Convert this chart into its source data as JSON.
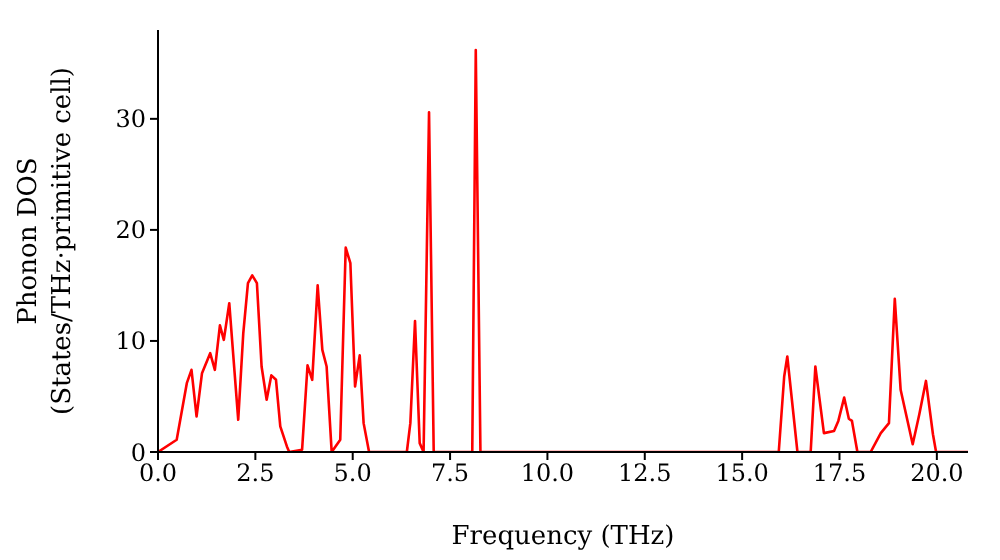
{
  "chart_data": {
    "type": "line",
    "xlabel": "Frequency (THz)",
    "ylabel": "Phonon DOS\n(States/THz·primitive cell)",
    "xlim": [
      0,
      20.8
    ],
    "ylim": [
      0,
      38
    ],
    "xticks": [
      {
        "value": 0,
        "label": "0.0"
      },
      2.5,
      {
        "value": 5,
        "label": "5.0"
      },
      7.5,
      {
        "value": 10,
        "label": "10.0"
      },
      12.5,
      {
        "value": 15,
        "label": "15.0"
      },
      17.5,
      {
        "value": 20,
        "label": "20.0"
      }
    ],
    "yticks": [
      0,
      10,
      20,
      30
    ],
    "grid": false,
    "legend": false,
    "marker": "none",
    "line_style": "solid",
    "series": [
      {
        "color": "#ff0000",
        "x": [
          0,
          0.48,
          0.74,
          0.86,
          0.99,
          1.13,
          1.34,
          1.46,
          1.59,
          1.69,
          1.83,
          2.06,
          2.19,
          2.31,
          2.42,
          2.54,
          2.66,
          2.79,
          2.91,
          3.03,
          3.14,
          3.31,
          3.37,
          3.7,
          3.84,
          3.96,
          4.1,
          4.22,
          4.33,
          4.46,
          4.68,
          4.82,
          4.94,
          5.06,
          5.18,
          5.28,
          5.42,
          6.39,
          6.48,
          6.6,
          6.72,
          6.82,
          6.96,
          7.08,
          8.07,
          8.16,
          8.28,
          15.94,
          16.08,
          16.16,
          16.42,
          16.76,
          16.88,
          17.1,
          17.36,
          17.47,
          17.62,
          17.74,
          17.82,
          17.96,
          18.3,
          18.56,
          18.77,
          18.92,
          19.07,
          19.38,
          19.55,
          19.72,
          19.9,
          19.98,
          20.8
        ],
        "values": [
          0,
          1.1,
          6.2,
          7.4,
          3.2,
          7.1,
          8.9,
          7.4,
          11.4,
          10.1,
          13.4,
          2.9,
          10.7,
          15.2,
          15.9,
          15.2,
          7.7,
          4.7,
          6.9,
          6.5,
          2.3,
          0.5,
          0,
          0.2,
          7.8,
          6.5,
          15,
          9.2,
          7.7,
          0,
          1.1,
          18.4,
          17,
          5.9,
          8.7,
          2.6,
          0,
          0,
          2.6,
          11.8,
          0.8,
          0,
          30.6,
          0,
          0,
          36.2,
          0,
          0,
          6.8,
          8.6,
          0,
          0,
          7.7,
          1.7,
          1.9,
          2.8,
          4.9,
          3,
          2.8,
          0,
          0,
          1.7,
          2.6,
          13.8,
          5.6,
          0.7,
          3.4,
          6.4,
          1.6,
          0,
          0
        ]
      }
    ]
  }
}
